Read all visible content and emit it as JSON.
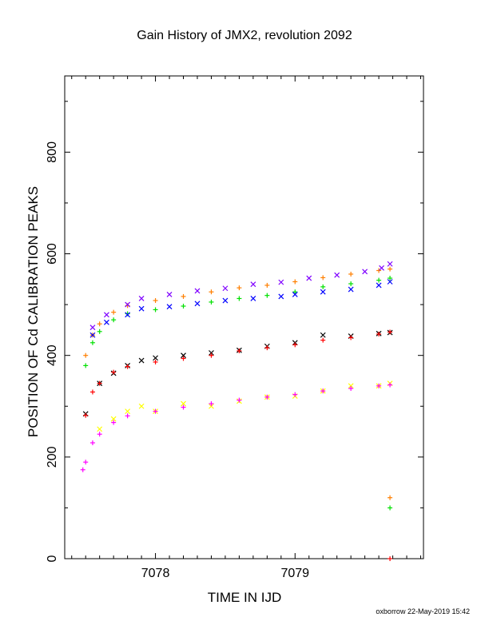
{
  "chart_data": {
    "type": "scatter",
    "title": "Gain History of JMX2, revolution 2092",
    "xlabel": "TIME IN IJD",
    "ylabel": "POSITION OF Cd CALIBRATION PEAKS",
    "xlim": [
      7077.35,
      7079.92
    ],
    "ylim": [
      0,
      950
    ],
    "x_ticks": [
      7078,
      7079
    ],
    "y_ticks": [
      0,
      200,
      400,
      600,
      800
    ],
    "grid": false,
    "series": [
      {
        "color": "#ff7f00",
        "marker": "+",
        "x": [
          7077.5,
          7077.55,
          7077.6,
          7077.7,
          7077.8,
          7078.0,
          7078.2,
          7078.4,
          7078.6,
          7078.8,
          7079.0,
          7079.2,
          7079.4,
          7079.6,
          7079.68
        ],
        "y": [
          400,
          440,
          462,
          485,
          498,
          508,
          516,
          525,
          533,
          538,
          545,
          553,
          560,
          567,
          570
        ]
      },
      {
        "color": "#7f00ff",
        "marker": "x",
        "x": [
          7077.55,
          7077.65,
          7077.8,
          7077.9,
          7078.1,
          7078.3,
          7078.5,
          7078.7,
          7078.9,
          7079.1,
          7079.3,
          7079.5,
          7079.62,
          7079.68
        ],
        "y": [
          455,
          480,
          500,
          512,
          520,
          527,
          532,
          540,
          544,
          552,
          558,
          565,
          572,
          580
        ]
      },
      {
        "color": "#00e000",
        "marker": "+",
        "x": [
          7077.5,
          7077.55,
          7077.6,
          7077.7,
          7077.8,
          7078.0,
          7078.2,
          7078.4,
          7078.6,
          7078.8,
          7079.0,
          7079.2,
          7079.4,
          7079.6,
          7079.68
        ],
        "y": [
          380,
          425,
          447,
          470,
          482,
          490,
          497,
          505,
          512,
          518,
          525,
          535,
          541,
          548,
          552
        ]
      },
      {
        "color": "#0000ff",
        "marker": "x",
        "x": [
          7077.55,
          7077.65,
          7077.8,
          7077.9,
          7078.1,
          7078.3,
          7078.5,
          7078.7,
          7078.9,
          7079.0,
          7079.2,
          7079.4,
          7079.6,
          7079.68
        ],
        "y": [
          440,
          465,
          480,
          492,
          496,
          502,
          508,
          512,
          516,
          520,
          525,
          530,
          538,
          545
        ]
      },
      {
        "color": "#000000",
        "marker": "x",
        "x": [
          7077.5,
          7077.6,
          7077.7,
          7077.8,
          7077.9,
          7078.0,
          7078.2,
          7078.4,
          7078.6,
          7078.8,
          7079.0,
          7079.2,
          7079.4,
          7079.6,
          7079.68
        ],
        "y": [
          285,
          345,
          365,
          380,
          390,
          395,
          400,
          405,
          410,
          418,
          425,
          440,
          438,
          443,
          445
        ]
      },
      {
        "color": "#ff0000",
        "marker": "+",
        "x": [
          7077.5,
          7077.55,
          7077.6,
          7077.7,
          7077.8,
          7078.0,
          7078.2,
          7078.4,
          7078.6,
          7078.8,
          7079.0,
          7079.2,
          7079.4,
          7079.6,
          7079.68
        ],
        "y": [
          282,
          328,
          345,
          367,
          378,
          387,
          394,
          400,
          409,
          415,
          421,
          430,
          435,
          442,
          446
        ]
      },
      {
        "color": "#ffff00",
        "marker": "x",
        "x": [
          7077.6,
          7077.7,
          7077.8,
          7077.9,
          7078.0,
          7078.2,
          7078.4,
          7078.6,
          7078.8,
          7079.0,
          7079.2,
          7079.4,
          7079.6,
          7079.68
        ],
        "y": [
          255,
          275,
          290,
          300,
          290,
          305,
          300,
          310,
          318,
          320,
          330,
          340,
          340,
          345
        ]
      },
      {
        "color": "#ff00ff",
        "marker": "+",
        "x": [
          7077.48,
          7077.5,
          7077.55,
          7077.6,
          7077.7,
          7077.8,
          7078.0,
          7078.2,
          7078.4,
          7078.6,
          7078.8,
          7079.0,
          7079.2,
          7079.4,
          7079.6,
          7079.68
        ],
        "y": [
          175,
          190,
          228,
          245,
          268,
          281,
          290,
          298,
          305,
          312,
          318,
          323,
          330,
          335,
          340,
          342
        ]
      },
      {
        "color": "#ff7f00",
        "marker": "+",
        "x": [
          7079.68
        ],
        "y": [
          120
        ]
      },
      {
        "color": "#00e000",
        "marker": "+",
        "x": [
          7079.68
        ],
        "y": [
          100
        ]
      },
      {
        "color": "#ff0000",
        "marker": "+",
        "x": [
          7079.68
        ],
        "y": [
          0
        ]
      }
    ]
  },
  "footer": {
    "credit": "oxborrow 22-May-2019 15:42"
  }
}
